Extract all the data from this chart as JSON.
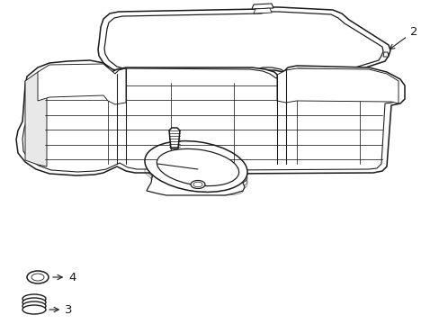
{
  "bg_color": "#ffffff",
  "line_color": "#1a1a1a",
  "line_width": 1.1,
  "fig_w": 4.89,
  "fig_h": 3.6,
  "dpi": 100
}
